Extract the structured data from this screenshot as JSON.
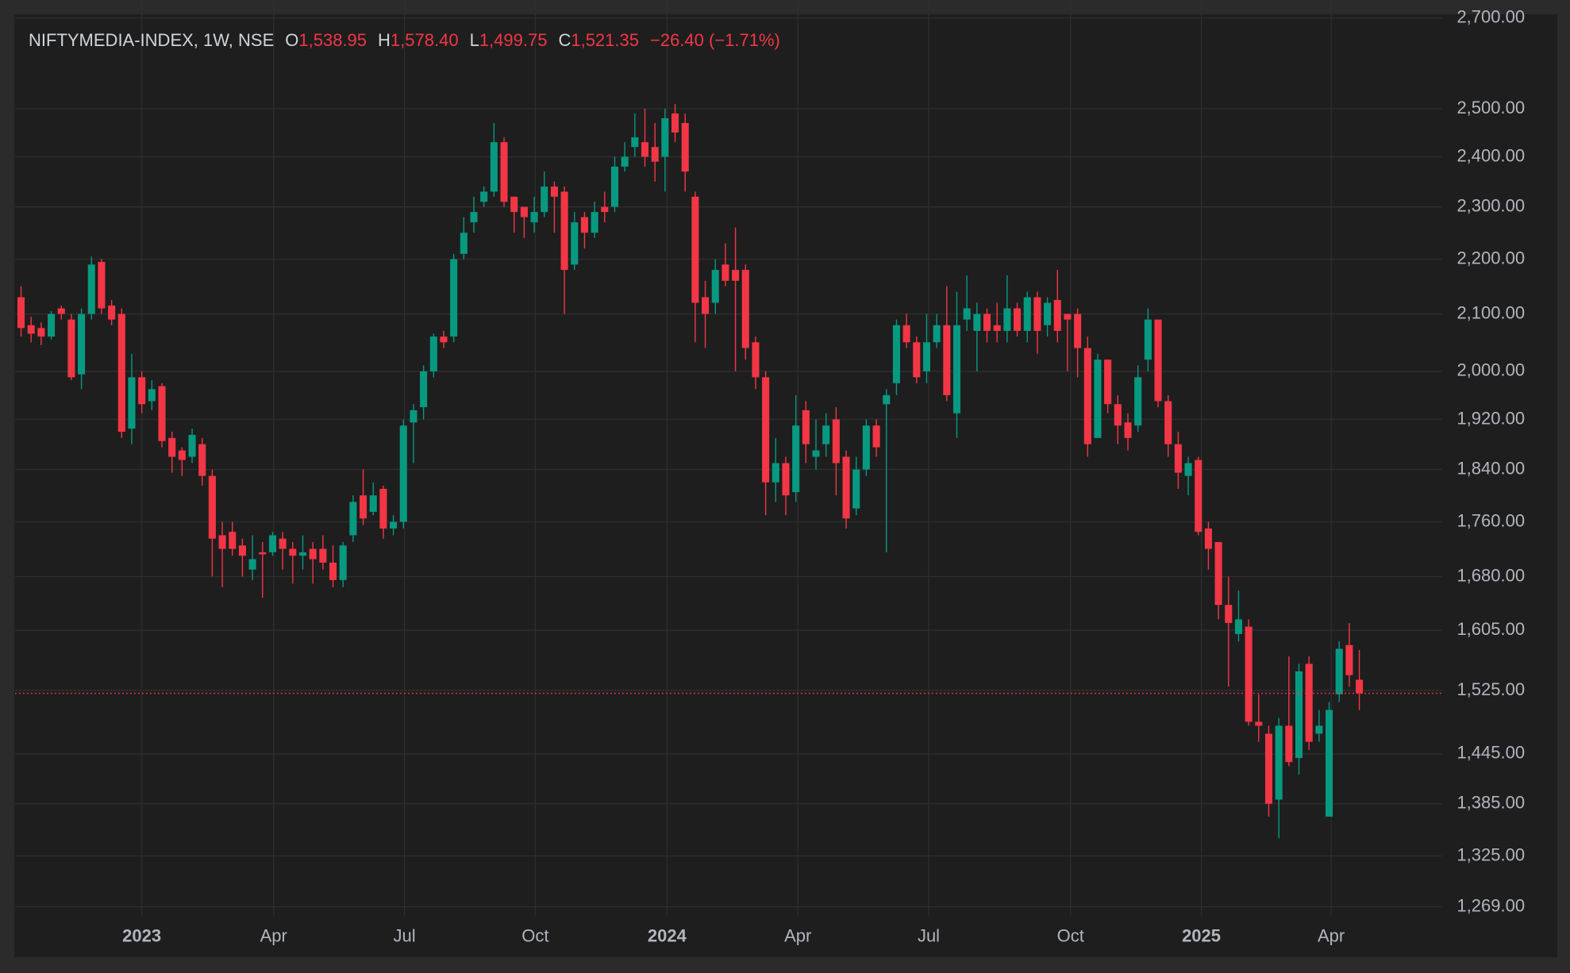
{
  "chart_data": {
    "type": "candlestick",
    "title": "NIFTYMEDIA-INDEX, 1W, NSE",
    "ohlc_legend": [
      {
        "label": "O",
        "value": "1,538.95"
      },
      {
        "label": "H",
        "value": "1,578.40"
      },
      {
        "label": "L",
        "value": "1,499.75"
      },
      {
        "label": "C",
        "value": "1,521.35"
      }
    ],
    "change": "−26.40 (−1.71%)",
    "up_color": "#089981",
    "down_color": "#f23645",
    "log_scale": true,
    "grid": true,
    "ylim": [
      1259,
      2742
    ],
    "yticks": [
      {
        "value": 2700,
        "label": "2,700.00"
      },
      {
        "value": 2500,
        "label": "2,500.00"
      },
      {
        "value": 2400,
        "label": "2,400.00"
      },
      {
        "value": 2300,
        "label": "2,300.00"
      },
      {
        "value": 2200,
        "label": "2,200.00"
      },
      {
        "value": 2100,
        "label": "2,100.00"
      },
      {
        "value": 2000,
        "label": "2,000.00"
      },
      {
        "value": 1920,
        "label": "1,920.00"
      },
      {
        "value": 1840,
        "label": "1,840.00"
      },
      {
        "value": 1760,
        "label": "1,760.00"
      },
      {
        "value": 1680,
        "label": "1,680.00"
      },
      {
        "value": 1605,
        "label": "1,605.00"
      },
      {
        "value": 1525,
        "label": "1,525.00"
      },
      {
        "value": 1445,
        "label": "1,445.00"
      },
      {
        "value": 1385,
        "label": "1,385.00"
      },
      {
        "value": 1325,
        "label": "1,325.00"
      },
      {
        "value": 1269,
        "label": "1,269.00"
      }
    ],
    "xlim": [
      -0.6,
      141.2
    ],
    "xticks": [
      {
        "value": 12.0,
        "label": "2023"
      },
      {
        "value": 25.1,
        "label": "Apr"
      },
      {
        "value": 38.1,
        "label": "Jul"
      },
      {
        "value": 51.1,
        "label": "Oct"
      },
      {
        "value": 64.2,
        "label": "2024"
      },
      {
        "value": 77.2,
        "label": "Apr"
      },
      {
        "value": 90.2,
        "label": "Jul"
      },
      {
        "value": 104.3,
        "label": "Oct"
      },
      {
        "value": 117.3,
        "label": "2025"
      },
      {
        "value": 130.2,
        "label": "Apr"
      }
    ],
    "open": [
      2130,
      2080,
      2075,
      2060,
      2110,
      2090,
      1995,
      2100,
      2195,
      2115,
      2100,
      1905,
      1990,
      1950,
      1975,
      1890,
      1870,
      1860,
      1880,
      1830,
      1740,
      1745,
      1725,
      1690,
      1715,
      1715,
      1735,
      1720,
      1710,
      1720,
      1720,
      1700,
      1675,
      1740,
      1800,
      1775,
      1810,
      1750,
      1760,
      1915,
      1940,
      2000,
      2060,
      2060,
      2210,
      2270,
      2310,
      2330,
      2430,
      2320,
      2300,
      2270,
      2290,
      2340,
      2330,
      2190,
      2280,
      2250,
      2300,
      2300,
      2380,
      2420,
      2430,
      2420,
      2400,
      2490,
      2470,
      2320,
      2130,
      2120,
      2190,
      2180,
      2180,
      2050,
      1990,
      1820,
      1850,
      1805,
      1935,
      1860,
      1880,
      1920,
      1860,
      1780,
      1840,
      1910,
      1945,
      1980,
      2080,
      2050,
      2000,
      2050,
      2080,
      1930,
      2090,
      2070,
      2100,
      2080,
      2070,
      2110,
      2070,
      2130,
      2080,
      2125,
      2100,
      2100,
      2040,
      1890,
      2020,
      1945,
      1915,
      1910,
      2020,
      2090,
      1950,
      1880,
      1830,
      1855,
      1750,
      1730,
      1640,
      1600,
      1610,
      1485,
      1470,
      1390,
      1480,
      1440,
      1560,
      1470,
      1370,
      1520,
      1585,
      1538.95
    ],
    "high": [
      2150,
      2095,
      2085,
      2105,
      2115,
      2100,
      2110,
      2205,
      2200,
      2125,
      2110,
      2030,
      2000,
      1985,
      1980,
      1900,
      1875,
      1905,
      1890,
      1840,
      1760,
      1760,
      1735,
      1740,
      1730,
      1745,
      1745,
      1730,
      1740,
      1730,
      1740,
      1725,
      1730,
      1800,
      1840,
      1820,
      1815,
      1770,
      1920,
      1945,
      2010,
      2065,
      2070,
      2210,
      2280,
      2320,
      2340,
      2470,
      2440,
      2320,
      2300,
      2320,
      2370,
      2350,
      2340,
      2290,
      2290,
      2310,
      2330,
      2400,
      2430,
      2490,
      2500,
      2470,
      2500,
      2510,
      2490,
      2330,
      2160,
      2200,
      2230,
      2260,
      2190,
      2060,
      2000,
      1890,
      1860,
      1960,
      1950,
      1920,
      1930,
      1940,
      1870,
      1860,
      1920,
      1920,
      1970,
      2090,
      2100,
      2060,
      2100,
      2100,
      2150,
      2140,
      2170,
      2120,
      2110,
      2120,
      2170,
      2120,
      2140,
      2140,
      2130,
      2180,
      2100,
      2110,
      2060,
      2030,
      2020,
      1960,
      1930,
      2010,
      2110,
      2080,
      1960,
      1900,
      1860,
      1860,
      1760,
      1730,
      1680,
      1660,
      1620,
      1520,
      1480,
      1490,
      1570,
      1560,
      1570,
      1500,
      1510,
      1590,
      1615,
      1578.4
    ],
    "low": [
      2060,
      2050,
      2045,
      2055,
      2090,
      1985,
      1970,
      2090,
      2100,
      2080,
      1890,
      1880,
      1930,
      1935,
      1875,
      1835,
      1830,
      1850,
      1815,
      1680,
      1665,
      1710,
      1680,
      1675,
      1650,
      1710,
      1690,
      1670,
      1690,
      1670,
      1690,
      1665,
      1665,
      1730,
      1755,
      1770,
      1735,
      1740,
      1750,
      1850,
      1920,
      1990,
      2040,
      2050,
      2200,
      2250,
      2300,
      2320,
      2300,
      2250,
      2240,
      2250,
      2280,
      2250,
      2100,
      2180,
      2220,
      2240,
      2270,
      2290,
      2370,
      2400,
      2380,
      2350,
      2330,
      2430,
      2330,
      2050,
      2040,
      2100,
      2150,
      2000,
      2020,
      1970,
      1770,
      1790,
      1770,
      1790,
      1850,
      1840,
      1860,
      1800,
      1750,
      1770,
      1830,
      1860,
      1715,
      1960,
      2040,
      1980,
      1980,
      2040,
      1950,
      1890,
      2070,
      2000,
      2050,
      2050,
      2050,
      2060,
      2050,
      2030,
      2060,
      2050,
      2000,
      1990,
      1860,
      1890,
      1930,
      1880,
      1870,
      1900,
      2000,
      1940,
      1860,
      1810,
      1800,
      1740,
      1690,
      1620,
      1530,
      1590,
      1480,
      1460,
      1370,
      1345,
      1430,
      1420,
      1450,
      1460,
      1370,
      1510,
      1530,
      1499.75
    ],
    "close": [
      2075,
      2065,
      2060,
      2100,
      2100,
      1990,
      2100,
      2190,
      2110,
      2090,
      1900,
      1990,
      1945,
      1970,
      1885,
      1860,
      1855,
      1895,
      1830,
      1735,
      1720,
      1720,
      1710,
      1705,
      1712,
      1740,
      1720,
      1710,
      1715,
      1705,
      1700,
      1675,
      1725,
      1790,
      1765,
      1800,
      1750,
      1760,
      1910,
      1935,
      2000,
      2060,
      2050,
      2200,
      2250,
      2290,
      2330,
      2430,
      2310,
      2290,
      2280,
      2290,
      2340,
      2320,
      2180,
      2270,
      2250,
      2290,
      2290,
      2380,
      2400,
      2440,
      2400,
      2390,
      2480,
      2450,
      2370,
      2120,
      2100,
      2180,
      2160,
      2160,
      2040,
      1990,
      1820,
      1850,
      1800,
      1910,
      1880,
      1870,
      1910,
      1850,
      1765,
      1840,
      1910,
      1875,
      1960,
      2080,
      2050,
      1990,
      2050,
      2080,
      1960,
      2080,
      2110,
      2100,
      2070,
      2070,
      2110,
      2070,
      2130,
      2070,
      2120,
      2070,
      2090,
      2040,
      1880,
      2020,
      1945,
      1910,
      1890,
      1990,
      2090,
      1950,
      1880,
      1835,
      1850,
      1745,
      1720,
      1640,
      1615,
      1620,
      1485,
      1480,
      1385,
      1480,
      1435,
      1550,
      1460,
      1480,
      1500,
      1580,
      1545,
      1521.35
    ]
  }
}
